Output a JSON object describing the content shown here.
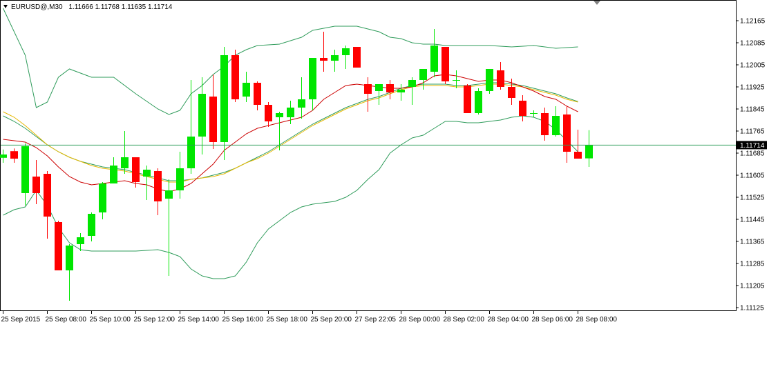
{
  "header": {
    "symbol": "EURUSD@,M30",
    "ohlc": "1.11666 1.11768 1.11635 1.11714"
  },
  "colors": {
    "bull": "#00e600",
    "bear": "#ff0000",
    "bollinger": "#2e9b5a",
    "ma_fast": "#cc0000",
    "ma_slow_a": "#e6b800",
    "ma_slow_b": "#2e9b5a",
    "price_line": "#2e9b5a",
    "price_tag_bg": "#000000",
    "axis": "#000000"
  },
  "chart_data": {
    "type": "candlestick",
    "ylim": [
      1.11115,
      1.12205
    ],
    "y_ticks": [
      "1.12165",
      "1.12085",
      "1.12005",
      "1.11925",
      "1.11845",
      "1.11765",
      "1.11685",
      "1.11605",
      "1.11525",
      "1.11445",
      "1.11365",
      "1.11285",
      "1.11205",
      "1.11125"
    ],
    "x_ticks": [
      {
        "index": 0,
        "label": "25 Sep 2015"
      },
      {
        "index": 4,
        "label": "25 Sep 08:00"
      },
      {
        "index": 8,
        "label": "25 Sep 10:00"
      },
      {
        "index": 12,
        "label": "25 Sep 12:00"
      },
      {
        "index": 16,
        "label": "25 Sep 14:00"
      },
      {
        "index": 20,
        "label": "25 Sep 16:00"
      },
      {
        "index": 24,
        "label": "25 Sep 18:00"
      },
      {
        "index": 28,
        "label": "25 Sep 20:00"
      },
      {
        "index": 32,
        "label": "27 Sep 22:05"
      },
      {
        "index": 36,
        "label": "28 Sep 00:00"
      },
      {
        "index": 40,
        "label": "28 Sep 02:00"
      },
      {
        "index": 44,
        "label": "28 Sep 04:00"
      },
      {
        "index": 48,
        "label": "28 Sep 06:00"
      },
      {
        "index": 52,
        "label": "28 Sep 08:00"
      }
    ],
    "current_price": "1.11714",
    "candles": [
      {
        "o": 1.11668,
        "h": 1.11698,
        "l": 1.1165,
        "c": 1.1168
      },
      {
        "o": 1.11692,
        "h": 1.11702,
        "l": 1.1165,
        "c": 1.11665
      },
      {
        "o": 1.1154,
        "h": 1.1172,
        "l": 1.11495,
        "c": 1.1171
      },
      {
        "o": 1.116,
        "h": 1.1166,
        "l": 1.115,
        "c": 1.1154
      },
      {
        "o": 1.1161,
        "h": 1.1162,
        "l": 1.11375,
        "c": 1.11455
      },
      {
        "o": 1.11435,
        "h": 1.1144,
        "l": 1.1126,
        "c": 1.1126
      },
      {
        "o": 1.1126,
        "h": 1.11355,
        "l": 1.1115,
        "c": 1.1135
      },
      {
        "o": 1.11355,
        "h": 1.11395,
        "l": 1.1133,
        "c": 1.1138
      },
      {
        "o": 1.11385,
        "h": 1.1147,
        "l": 1.11365,
        "c": 1.11465
      },
      {
        "o": 1.1147,
        "h": 1.1158,
        "l": 1.11445,
        "c": 1.11575
      },
      {
        "o": 1.11575,
        "h": 1.1167,
        "l": 1.11575,
        "c": 1.1164
      },
      {
        "o": 1.1163,
        "h": 1.11765,
        "l": 1.1161,
        "c": 1.1167
      },
      {
        "o": 1.1167,
        "h": 1.1167,
        "l": 1.1156,
        "c": 1.1158
      },
      {
        "o": 1.116,
        "h": 1.1164,
        "l": 1.11515,
        "c": 1.11625
      },
      {
        "o": 1.1162,
        "h": 1.1163,
        "l": 1.1146,
        "c": 1.1151
      },
      {
        "o": 1.1152,
        "h": 1.1159,
        "l": 1.1124,
        "c": 1.1155
      },
      {
        "o": 1.1155,
        "h": 1.1169,
        "l": 1.1152,
        "c": 1.1163
      },
      {
        "o": 1.1163,
        "h": 1.1195,
        "l": 1.1161,
        "c": 1.11745
      },
      {
        "o": 1.11745,
        "h": 1.1196,
        "l": 1.1168,
        "c": 1.119
      },
      {
        "o": 1.1189,
        "h": 1.1197,
        "l": 1.117,
        "c": 1.11725
      },
      {
        "o": 1.11725,
        "h": 1.1207,
        "l": 1.1166,
        "c": 1.1204
      },
      {
        "o": 1.1204,
        "h": 1.1206,
        "l": 1.1187,
        "c": 1.1188
      },
      {
        "o": 1.1189,
        "h": 1.1198,
        "l": 1.1187,
        "c": 1.1194
      },
      {
        "o": 1.1194,
        "h": 1.11945,
        "l": 1.1184,
        "c": 1.1186
      },
      {
        "o": 1.1186,
        "h": 1.1187,
        "l": 1.1178,
        "c": 1.118
      },
      {
        "o": 1.11815,
        "h": 1.11835,
        "l": 1.11695,
        "c": 1.1183
      },
      {
        "o": 1.11815,
        "h": 1.11875,
        "l": 1.1179,
        "c": 1.1185
      },
      {
        "o": 1.1185,
        "h": 1.1196,
        "l": 1.1181,
        "c": 1.1188
      },
      {
        "o": 1.1188,
        "h": 1.1203,
        "l": 1.1184,
        "c": 1.1203
      },
      {
        "o": 1.1203,
        "h": 1.12125,
        "l": 1.1198,
        "c": 1.1202
      },
      {
        "o": 1.1202,
        "h": 1.1206,
        "l": 1.1198,
        "c": 1.1204
      },
      {
        "o": 1.1204,
        "h": 1.12075,
        "l": 1.1199,
        "c": 1.12065
      },
      {
        "o": 1.1207,
        "h": 1.1207,
        "l": 1.11995,
        "c": 1.11995
      },
      {
        "o": 1.11935,
        "h": 1.1196,
        "l": 1.11835,
        "c": 1.119
      },
      {
        "o": 1.1191,
        "h": 1.11935,
        "l": 1.1186,
        "c": 1.11935
      },
      {
        "o": 1.11935,
        "h": 1.1195,
        "l": 1.1188,
        "c": 1.11905
      },
      {
        "o": 1.11905,
        "h": 1.11935,
        "l": 1.11875,
        "c": 1.11915
      },
      {
        "o": 1.11925,
        "h": 1.1196,
        "l": 1.1186,
        "c": 1.1195
      },
      {
        "o": 1.1195,
        "h": 1.1199,
        "l": 1.11915,
        "c": 1.1199
      },
      {
        "o": 1.1198,
        "h": 1.12135,
        "l": 1.1196,
        "c": 1.12075
      },
      {
        "o": 1.1207,
        "h": 1.1207,
        "l": 1.11935,
        "c": 1.11945
      },
      {
        "o": 1.1195,
        "h": 1.11985,
        "l": 1.1192,
        "c": 1.1195
      },
      {
        "o": 1.1193,
        "h": 1.11935,
        "l": 1.1183,
        "c": 1.1183
      },
      {
        "o": 1.1183,
        "h": 1.1192,
        "l": 1.11825,
        "c": 1.1191
      },
      {
        "o": 1.1191,
        "h": 1.1199,
        "l": 1.119,
        "c": 1.1199
      },
      {
        "o": 1.11985,
        "h": 1.12015,
        "l": 1.11915,
        "c": 1.11925
      },
      {
        "o": 1.11925,
        "h": 1.11955,
        "l": 1.1186,
        "c": 1.11885
      },
      {
        "o": 1.11875,
        "h": 1.11895,
        "l": 1.118,
        "c": 1.1182
      },
      {
        "o": 1.1183,
        "h": 1.1184,
        "l": 1.11815,
        "c": 1.1183
      },
      {
        "o": 1.1183,
        "h": 1.1185,
        "l": 1.1173,
        "c": 1.1175
      },
      {
        "o": 1.1175,
        "h": 1.11855,
        "l": 1.11745,
        "c": 1.1182
      },
      {
        "o": 1.11825,
        "h": 1.11855,
        "l": 1.1165,
        "c": 1.1169
      },
      {
        "o": 1.1169,
        "h": 1.1177,
        "l": 1.11665,
        "c": 1.11665
      },
      {
        "o": 1.11666,
        "h": 1.11768,
        "l": 1.11635,
        "c": 1.11714
      }
    ],
    "bollinger_upper": [
      [
        0,
        1.1221
      ],
      [
        2,
        1.1204
      ],
      [
        3,
        1.1185
      ],
      [
        4,
        1.1187
      ],
      [
        5,
        1.1196
      ],
      [
        6,
        1.1199
      ],
      [
        8,
        1.1196
      ],
      [
        10,
        1.1196
      ],
      [
        12,
        1.119
      ],
      [
        14,
        1.11845
      ],
      [
        15,
        1.11825
      ],
      [
        16,
        1.1184
      ],
      [
        17,
        1.119
      ],
      [
        18,
        1.1193
      ],
      [
        19,
        1.1197
      ],
      [
        20,
        1.12
      ],
      [
        21,
        1.1204
      ],
      [
        22,
        1.1206
      ],
      [
        23,
        1.12075
      ],
      [
        25,
        1.1208
      ],
      [
        27,
        1.12105
      ],
      [
        28,
        1.1213
      ],
      [
        30,
        1.12145
      ],
      [
        32,
        1.12145
      ],
      [
        34,
        1.12125
      ],
      [
        35,
        1.12105
      ],
      [
        36,
        1.121
      ],
      [
        37,
        1.12085
      ],
      [
        38,
        1.1208
      ],
      [
        39,
        1.1208
      ],
      [
        40,
        1.12075
      ],
      [
        44,
        1.12075
      ],
      [
        46,
        1.1207
      ],
      [
        48,
        1.12075
      ],
      [
        50,
        1.12065
      ],
      [
        52,
        1.1207
      ]
    ],
    "bollinger_lower": [
      [
        0,
        1.1146
      ],
      [
        1,
        1.1148
      ],
      [
        2,
        1.1149
      ],
      [
        3,
        1.1155
      ],
      [
        4,
        1.11495
      ],
      [
        5,
        1.11415
      ],
      [
        6,
        1.1136
      ],
      [
        7,
        1.11335
      ],
      [
        8,
        1.1133
      ],
      [
        10,
        1.1133
      ],
      [
        12,
        1.1133
      ],
      [
        14,
        1.11335
      ],
      [
        15,
        1.11325
      ],
      [
        16,
        1.1131
      ],
      [
        17,
        1.11265
      ],
      [
        18,
        1.1124
      ],
      [
        19,
        1.1123
      ],
      [
        20,
        1.1123
      ],
      [
        21,
        1.1124
      ],
      [
        22,
        1.1129
      ],
      [
        23,
        1.1136
      ],
      [
        24,
        1.1141
      ],
      [
        25,
        1.1144
      ],
      [
        26,
        1.1147
      ],
      [
        27,
        1.1149
      ],
      [
        28,
        1.115
      ],
      [
        29,
        1.11505
      ],
      [
        30,
        1.1151
      ],
      [
        31,
        1.11525
      ],
      [
        32,
        1.1155
      ],
      [
        33,
        1.1159
      ],
      [
        34,
        1.11625
      ],
      [
        35,
        1.11685
      ],
      [
        36,
        1.11715
      ],
      [
        37,
        1.1174
      ],
      [
        38,
        1.1175
      ],
      [
        39,
        1.11775
      ],
      [
        40,
        1.118
      ],
      [
        41,
        1.118
      ],
      [
        42,
        1.11795
      ],
      [
        43,
        1.11795
      ],
      [
        44,
        1.118
      ],
      [
        45,
        1.11805
      ],
      [
        46,
        1.11815
      ],
      [
        47,
        1.1182
      ],
      [
        48,
        1.11815
      ],
      [
        49,
        1.118
      ],
      [
        50,
        1.1177
      ],
      [
        51,
        1.1173
      ],
      [
        52,
        1.1169
      ]
    ],
    "ma_fast": [
      [
        0,
        1.11735
      ],
      [
        1,
        1.1173
      ],
      [
        2,
        1.11725
      ],
      [
        3,
        1.11705
      ],
      [
        4,
        1.11675
      ],
      [
        5,
        1.11635
      ],
      [
        6,
        1.116
      ],
      [
        7,
        1.1158
      ],
      [
        8,
        1.1157
      ],
      [
        9,
        1.11575
      ],
      [
        10,
        1.1158
      ],
      [
        11,
        1.11585
      ],
      [
        12,
        1.11575
      ],
      [
        13,
        1.1157
      ],
      [
        14,
        1.11555
      ],
      [
        15,
        1.11545
      ],
      [
        16,
        1.11555
      ],
      [
        17,
        1.11575
      ],
      [
        18,
        1.1161
      ],
      [
        19,
        1.11645
      ],
      [
        20,
        1.11695
      ],
      [
        21,
        1.11725
      ],
      [
        22,
        1.11755
      ],
      [
        23,
        1.11775
      ],
      [
        24,
        1.11785
      ],
      [
        25,
        1.11795
      ],
      [
        26,
        1.11805
      ],
      [
        27,
        1.11815
      ],
      [
        28,
        1.1184
      ],
      [
        29,
        1.1188
      ],
      [
        30,
        1.11905
      ],
      [
        31,
        1.1193
      ],
      [
        32,
        1.11935
      ],
      [
        33,
        1.1193
      ],
      [
        34,
        1.11925
      ],
      [
        35,
        1.1192
      ],
      [
        36,
        1.1192
      ],
      [
        37,
        1.11925
      ],
      [
        38,
        1.1194
      ],
      [
        39,
        1.11965
      ],
      [
        40,
        1.1197
      ],
      [
        41,
        1.11965
      ],
      [
        42,
        1.11955
      ],
      [
        43,
        1.11945
      ],
      [
        44,
        1.1195
      ],
      [
        45,
        1.1195
      ],
      [
        46,
        1.1194
      ],
      [
        47,
        1.11925
      ],
      [
        48,
        1.1191
      ],
      [
        49,
        1.1189
      ],
      [
        50,
        1.1188
      ],
      [
        51,
        1.11855
      ],
      [
        52,
        1.11835
      ]
    ],
    "ma_slow_a": [
      [
        0,
        1.11835
      ],
      [
        1,
        1.11815
      ],
      [
        2,
        1.11785
      ],
      [
        3,
        1.1175
      ],
      [
        4,
        1.11715
      ],
      [
        5,
        1.1169
      ],
      [
        6,
        1.1167
      ],
      [
        7,
        1.11655
      ],
      [
        8,
        1.1164
      ],
      [
        9,
        1.1163
      ],
      [
        10,
        1.11625
      ],
      [
        11,
        1.1162
      ],
      [
        12,
        1.1161
      ],
      [
        13,
        1.116
      ],
      [
        14,
        1.1159
      ],
      [
        15,
        1.1158
      ],
      [
        16,
        1.1158
      ],
      [
        17,
        1.1159
      ],
      [
        18,
        1.11595
      ],
      [
        19,
        1.116
      ],
      [
        20,
        1.1161
      ],
      [
        21,
        1.1163
      ],
      [
        22,
        1.1165
      ],
      [
        23,
        1.11665
      ],
      [
        24,
        1.11685
      ],
      [
        25,
        1.1171
      ],
      [
        26,
        1.11735
      ],
      [
        27,
        1.1176
      ],
      [
        28,
        1.11785
      ],
      [
        29,
        1.11805
      ],
      [
        30,
        1.11825
      ],
      [
        31,
        1.11845
      ],
      [
        32,
        1.1186
      ],
      [
        33,
        1.11875
      ],
      [
        34,
        1.11885
      ],
      [
        35,
        1.119
      ],
      [
        36,
        1.11915
      ],
      [
        37,
        1.11925
      ],
      [
        38,
        1.1193
      ],
      [
        39,
        1.1193
      ],
      [
        40,
        1.1193
      ],
      [
        41,
        1.11925
      ],
      [
        42,
        1.11925
      ],
      [
        43,
        1.1193
      ],
      [
        44,
        1.11935
      ],
      [
        45,
        1.11935
      ],
      [
        46,
        1.1193
      ],
      [
        47,
        1.11925
      ],
      [
        48,
        1.11915
      ],
      [
        49,
        1.11905
      ],
      [
        50,
        1.11895
      ],
      [
        51,
        1.1188
      ],
      [
        52,
        1.1187
      ]
    ],
    "ma_slow_b": [
      [
        0,
        1.1182
      ],
      [
        1,
        1.118
      ],
      [
        2,
        1.11775
      ],
      [
        3,
        1.11745
      ],
      [
        4,
        1.11715
      ],
      [
        5,
        1.1169
      ],
      [
        6,
        1.1167
      ],
      [
        7,
        1.11655
      ],
      [
        8,
        1.11645
      ],
      [
        9,
        1.11635
      ],
      [
        10,
        1.1163
      ],
      [
        11,
        1.11625
      ],
      [
        12,
        1.11615
      ],
      [
        13,
        1.11605
      ],
      [
        14,
        1.11595
      ],
      [
        15,
        1.11585
      ],
      [
        16,
        1.11585
      ],
      [
        17,
        1.1159
      ],
      [
        18,
        1.11595
      ],
      [
        19,
        1.11605
      ],
      [
        20,
        1.11615
      ],
      [
        21,
        1.1163
      ],
      [
        22,
        1.1165
      ],
      [
        23,
        1.1167
      ],
      [
        24,
        1.1169
      ],
      [
        25,
        1.11715
      ],
      [
        26,
        1.1174
      ],
      [
        27,
        1.11765
      ],
      [
        28,
        1.1179
      ],
      [
        29,
        1.1181
      ],
      [
        30,
        1.1183
      ],
      [
        31,
        1.1185
      ],
      [
        32,
        1.11865
      ],
      [
        33,
        1.1188
      ],
      [
        34,
        1.1189
      ],
      [
        35,
        1.11905
      ],
      [
        36,
        1.1192
      ],
      [
        37,
        1.1193
      ],
      [
        38,
        1.11935
      ],
      [
        39,
        1.11935
      ],
      [
        40,
        1.11935
      ],
      [
        41,
        1.1193
      ],
      [
        42,
        1.1193
      ],
      [
        43,
        1.11935
      ],
      [
        44,
        1.1194
      ],
      [
        45,
        1.1194
      ],
      [
        46,
        1.11935
      ],
      [
        47,
        1.1193
      ],
      [
        48,
        1.1192
      ],
      [
        49,
        1.1191
      ],
      [
        50,
        1.119
      ],
      [
        51,
        1.11885
      ],
      [
        52,
        1.11872
      ]
    ]
  }
}
